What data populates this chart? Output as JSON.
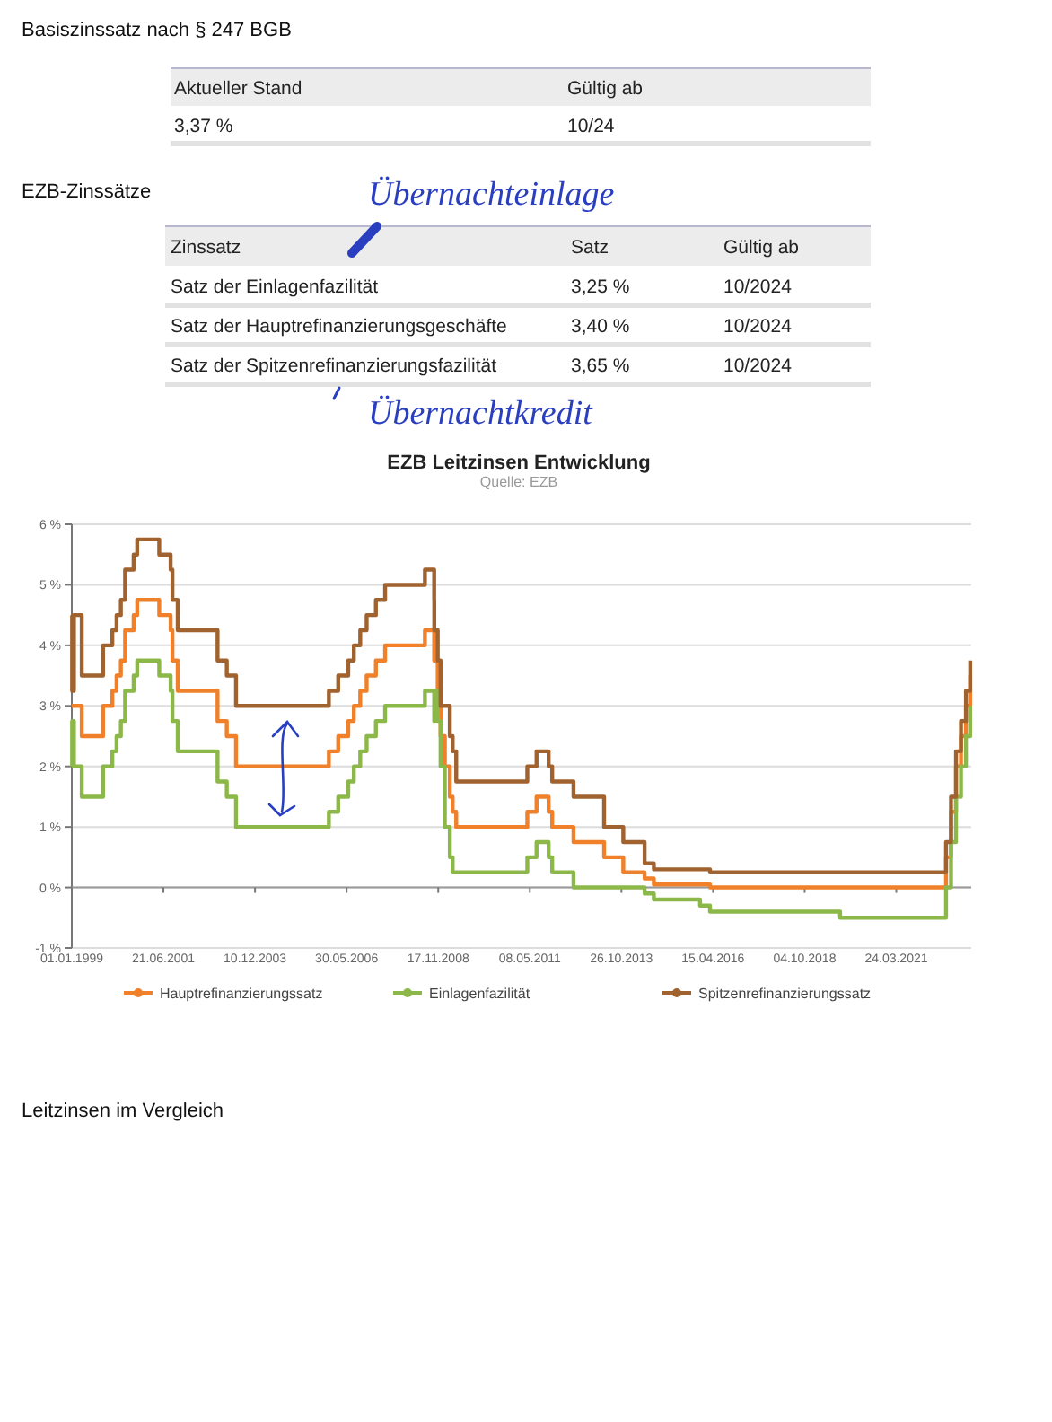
{
  "chart_data": [
    {
      "type": "other",
      "title": "Basiszinssatz nach § 247 BGB",
      "categories": [
        "Aktueller Stand",
        "Gültig ab"
      ],
      "cell_labels": [
        [
          "3,37 %",
          "10/24"
        ]
      ]
    },
    {
      "type": "other",
      "title": "EZB-Zinssätze",
      "categories": [
        "Zinssatz",
        "Satz",
        "Gültig ab"
      ],
      "y_categories": [
        "Satz der Einlagenfazilität",
        "Satz der Hauptrefinanzierungsgeschäfte",
        "Satz der Spitzenrefinanzierungsfazilität"
      ],
      "cell_labels": [
        [
          "3,25 %",
          "10/2024"
        ],
        [
          "3,40 %",
          "10/2024"
        ],
        [
          "3,65 %",
          "10/2024"
        ]
      ],
      "annotations": [
        "Übernachteinlage",
        "Übernachtkredit"
      ]
    },
    {
      "type": "step",
      "title": "EZB Leitzinsen Entwicklung",
      "subtitle": "Quelle: EZB",
      "x": [
        "1999-01-01",
        "1999-01-04",
        "1999-01-22",
        "1999-04-09",
        "1999-11-05",
        "2000-02-04",
        "2000-03-17",
        "2000-04-28",
        "2000-06-09",
        "2000-09-01",
        "2000-10-06",
        "2001-05-11",
        "2001-08-31",
        "2001-09-18",
        "2001-11-09",
        "2002-12-06",
        "2003-03-07",
        "2003-06-06",
        "2005-12-06",
        "2006-03-08",
        "2006-06-15",
        "2006-08-09",
        "2006-10-11",
        "2006-12-13",
        "2007-03-14",
        "2007-06-13",
        "2008-07-09",
        "2008-10-08",
        "2008-10-09",
        "2008-11-12",
        "2008-12-10",
        "2009-01-21",
        "2009-03-11",
        "2009-04-08",
        "2009-05-13",
        "2011-04-13",
        "2011-07-13",
        "2011-11-09",
        "2011-12-14",
        "2012-07-11",
        "2013-05-08",
        "2013-11-13",
        "2014-06-11",
        "2014-09-10",
        "2015-12-09",
        "2016-03-16",
        "2019-09-18",
        "2022-07-27",
        "2022-09-14",
        "2022-11-02",
        "2022-12-21",
        "2023-02-08",
        "2023-03-22"
      ],
      "series": [
        {
          "name": "Hauptrefinanzierungssatz",
          "color": "#f0802a",
          "values": [
            3,
            3,
            3,
            2.5,
            3,
            3.25,
            3.5,
            3.75,
            4.25,
            4.5,
            4.75,
            4.5,
            4.25,
            3.75,
            3.25,
            2.75,
            2.5,
            2,
            2.25,
            2.5,
            2.75,
            3,
            3.25,
            3.5,
            3.75,
            4,
            4.25,
            3.75,
            3.75,
            3.25,
            2.5,
            2,
            1.5,
            1.25,
            1,
            1.25,
            1.5,
            1.25,
            1,
            0.75,
            0.5,
            0.25,
            0.15,
            0.05,
            0.05,
            0,
            0,
            0.5,
            1.25,
            2,
            2.5,
            3,
            3.5
          ]
        },
        {
          "name": "Einlagenfazilität",
          "color": "#8cb84a",
          "values": [
            2,
            2.75,
            2,
            1.5,
            2,
            2.25,
            2.5,
            2.75,
            3.25,
            3.5,
            3.75,
            3.5,
            3.25,
            2.75,
            2.25,
            1.75,
            1.5,
            1,
            1.25,
            1.5,
            1.75,
            2,
            2.25,
            2.5,
            2.75,
            3,
            3.25,
            2.75,
            3.25,
            2.75,
            2,
            1,
            0.5,
            0.25,
            0.25,
            0.5,
            0.75,
            0.5,
            0.25,
            0,
            0,
            0,
            -0.1,
            -0.2,
            -0.3,
            -0.4,
            -0.5,
            0,
            0.75,
            1.5,
            2,
            2.5,
            3
          ]
        },
        {
          "name": "Spitzenrefinanzierungssatz",
          "color": "#a0622e",
          "values": [
            4.5,
            3.25,
            4.5,
            3.5,
            4,
            4.25,
            4.5,
            4.75,
            5.25,
            5.5,
            5.75,
            5.5,
            5.25,
            4.75,
            4.25,
            3.75,
            3.5,
            3,
            3.25,
            3.5,
            3.75,
            4,
            4.25,
            4.5,
            4.75,
            5,
            5.25,
            4.75,
            4.25,
            3.75,
            3,
            3,
            2.5,
            2.25,
            1.75,
            2,
            2.25,
            2,
            1.75,
            1.5,
            1,
            0.75,
            0.4,
            0.3,
            0.3,
            0.25,
            0.25,
            0.75,
            1.5,
            2.25,
            2.75,
            3.25,
            3.75
          ]
        }
      ],
      "xlim": [
        "1999-01-01",
        "2023-04-01"
      ],
      "xticks": [
        {
          "value": "1999-01-01",
          "label": "01.01.1999"
        },
        {
          "value": "2001-06-21",
          "label": "21.06.2001"
        },
        {
          "value": "2003-12-10",
          "label": "10.12.2003"
        },
        {
          "value": "2006-05-30",
          "label": "30.05.2006"
        },
        {
          "value": "2008-11-17",
          "label": "17.11.2008"
        },
        {
          "value": "2011-05-08",
          "label": "08.05.2011"
        },
        {
          "value": "2013-10-26",
          "label": "26.10.2013"
        },
        {
          "value": "2016-04-15",
          "label": "15.04.2016"
        },
        {
          "value": "2018-10-04",
          "label": "04.10.2018"
        },
        {
          "value": "2021-03-24",
          "label": "24.03.2021"
        }
      ],
      "ylim": [
        -1,
        6
      ],
      "yticks": [
        {
          "value": -1,
          "label": "-1 %"
        },
        {
          "value": 0,
          "label": "0 %"
        },
        {
          "value": 1,
          "label": "1 %"
        },
        {
          "value": 2,
          "label": "2 %"
        },
        {
          "value": 3,
          "label": "3 %"
        },
        {
          "value": 4,
          "label": "4 %"
        },
        {
          "value": 5,
          "label": "5 %"
        },
        {
          "value": 6,
          "label": "6 %"
        }
      ],
      "grid": "y",
      "legend": "bottom",
      "marker": "none",
      "line_style": "solid"
    },
    {
      "type": "other",
      "title": "Leitzinsen im Vergleich"
    }
  ]
}
